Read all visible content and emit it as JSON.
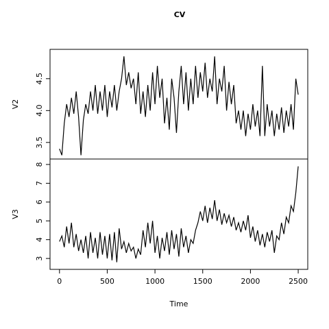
{
  "chart_data": [
    {
      "type": "line",
      "title": "CV",
      "y_label": "V2",
      "color": "#000000",
      "x": [
        0,
        25,
        50,
        75,
        100,
        125,
        150,
        175,
        200,
        225,
        250,
        275,
        300,
        325,
        350,
        375,
        400,
        425,
        450,
        475,
        500,
        525,
        550,
        575,
        600,
        625,
        650,
        675,
        700,
        725,
        750,
        775,
        800,
        825,
        850,
        875,
        900,
        925,
        950,
        975,
        1000,
        1025,
        1050,
        1075,
        1100,
        1125,
        1150,
        1175,
        1200,
        1225,
        1250,
        1275,
        1300,
        1325,
        1350,
        1375,
        1400,
        1425,
        1450,
        1475,
        1500,
        1525,
        1550,
        1575,
        1600,
        1625,
        1650,
        1675,
        1700,
        1725,
        1750,
        1775,
        1800,
        1825,
        1850,
        1875,
        1900,
        1925,
        1950,
        1975,
        2000,
        2025,
        2050,
        2075,
        2100,
        2125,
        2150,
        2175,
        2200,
        2225,
        2250,
        2275,
        2300,
        2325,
        2350,
        2375,
        2400,
        2425,
        2450,
        2475,
        2500
      ],
      "values": [
        3.4,
        3.3,
        3.8,
        4.1,
        3.9,
        4.2,
        3.95,
        4.3,
        3.9,
        3.3,
        3.85,
        4.1,
        3.95,
        4.3,
        4.0,
        4.4,
        3.95,
        4.3,
        4.0,
        4.4,
        3.9,
        4.3,
        4.05,
        4.4,
        4.0,
        4.3,
        4.5,
        4.85,
        4.4,
        4.6,
        4.35,
        4.5,
        4.1,
        4.6,
        3.95,
        4.3,
        3.9,
        4.4,
        4.0,
        4.6,
        4.1,
        4.7,
        4.2,
        4.5,
        3.8,
        4.2,
        3.7,
        4.5,
        4.2,
        3.65,
        4.3,
        4.7,
        4.1,
        4.6,
        4.0,
        4.5,
        4.1,
        4.7,
        4.2,
        4.6,
        4.3,
        4.75,
        4.2,
        4.5,
        4.3,
        4.85,
        4.1,
        4.5,
        4.3,
        4.7,
        4.0,
        4.45,
        4.1,
        4.4,
        3.8,
        4.0,
        3.7,
        4.0,
        3.6,
        3.95,
        3.7,
        4.1,
        3.75,
        4.0,
        3.6,
        4.7,
        3.6,
        4.1,
        3.75,
        4.0,
        3.6,
        3.95,
        3.7,
        4.05,
        3.65,
        4.0,
        3.75,
        4.1,
        3.7,
        4.5,
        4.25
      ],
      "xlim": [
        -99,
        2600
      ],
      "ylim": [
        3.24,
        4.96
      ],
      "yticks": [
        3.5,
        {
          "value": 4,
          "label": "4.0"
        },
        4.5
      ]
    },
    {
      "type": "line",
      "y_label": "V3",
      "x_label": "Time",
      "color": "#000000",
      "x": [
        0,
        25,
        50,
        75,
        100,
        125,
        150,
        175,
        200,
        225,
        250,
        275,
        300,
        325,
        350,
        375,
        400,
        425,
        450,
        475,
        500,
        525,
        550,
        575,
        600,
        625,
        650,
        675,
        700,
        725,
        750,
        775,
        800,
        825,
        850,
        875,
        900,
        925,
        950,
        975,
        1000,
        1025,
        1050,
        1075,
        1100,
        1125,
        1150,
        1175,
        1200,
        1225,
        1250,
        1275,
        1300,
        1325,
        1350,
        1375,
        1400,
        1425,
        1450,
        1475,
        1500,
        1525,
        1550,
        1575,
        1600,
        1625,
        1650,
        1675,
        1700,
        1725,
        1750,
        1775,
        1800,
        1825,
        1850,
        1875,
        1900,
        1925,
        1950,
        1975,
        2000,
        2025,
        2050,
        2075,
        2100,
        2125,
        2150,
        2175,
        2200,
        2225,
        2250,
        2275,
        2300,
        2325,
        2350,
        2375,
        2400,
        2425,
        2450,
        2475,
        2500
      ],
      "values": [
        3.9,
        4.2,
        3.6,
        4.7,
        3.8,
        4.9,
        3.6,
        4.3,
        3.4,
        4.0,
        3.3,
        4.2,
        3.0,
        4.4,
        3.3,
        4.1,
        3.0,
        4.4,
        3.2,
        4.2,
        3.0,
        4.3,
        2.9,
        4.4,
        2.8,
        4.6,
        3.5,
        3.9,
        3.3,
        3.8,
        3.4,
        3.6,
        3.0,
        3.5,
        3.2,
        4.5,
        3.6,
        4.9,
        3.8,
        5.0,
        3.3,
        4.2,
        3.0,
        4.1,
        3.4,
        4.4,
        3.2,
        4.5,
        3.5,
        4.3,
        3.1,
        4.6,
        3.6,
        4.2,
        3.3,
        4.0,
        3.8,
        4.5,
        4.9,
        5.5,
        5.0,
        5.8,
        4.9,
        5.7,
        5.1,
        6.1,
        5.0,
        5.6,
        4.8,
        5.4,
        4.9,
        5.3,
        4.7,
        5.2,
        4.5,
        4.9,
        4.4,
        5.0,
        4.5,
        5.3,
        4.1,
        4.7,
        3.9,
        4.5,
        3.7,
        4.3,
        3.6,
        4.4,
        3.9,
        4.5,
        3.3,
        4.2,
        4.0,
        4.9,
        4.3,
        5.2,
        4.9,
        5.8,
        5.5,
        6.5,
        7.9
      ],
      "xlim": [
        -99,
        2600
      ],
      "ylim": [
        2.42,
        8.29
      ],
      "yticks": [
        3,
        4,
        5,
        6,
        7,
        8
      ],
      "xticks": [
        0,
        500,
        1000,
        1500,
        2000,
        2500
      ]
    }
  ]
}
